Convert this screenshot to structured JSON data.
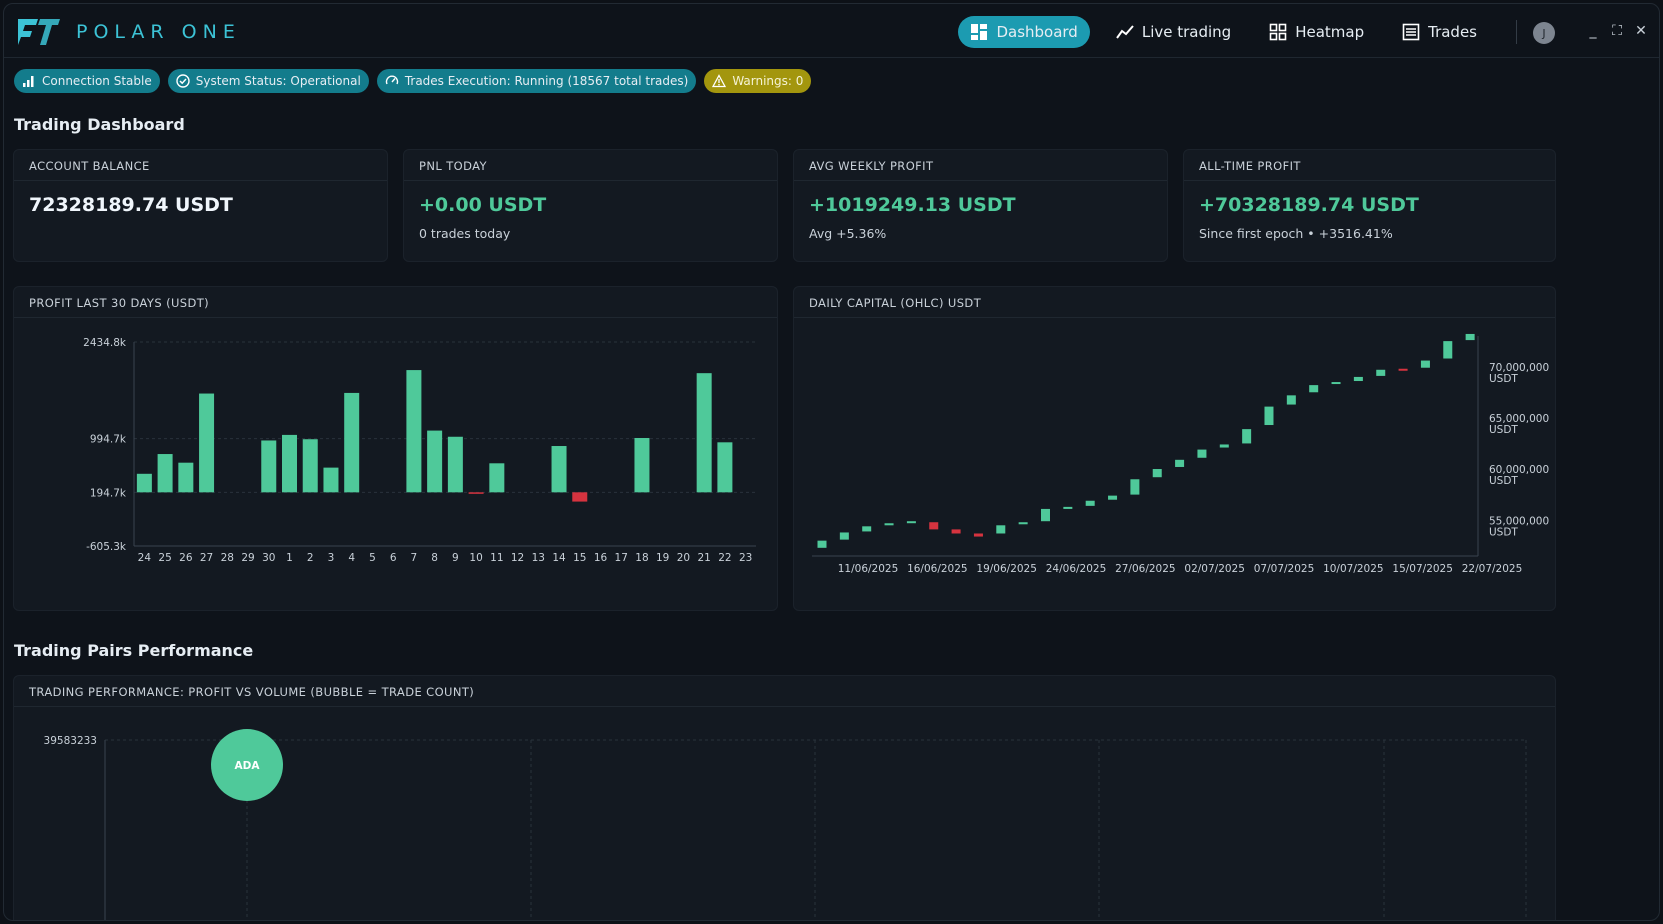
{
  "app": {
    "brand": "POLAR ONE"
  },
  "nav": {
    "items": [
      {
        "label": "Dashboard",
        "icon": "dashboard-icon",
        "active": true
      },
      {
        "label": "Live trading",
        "icon": "line-chart-icon",
        "active": false
      },
      {
        "label": "Heatmap",
        "icon": "grid-icon",
        "active": false
      },
      {
        "label": "Trades",
        "icon": "list-icon",
        "active": false
      }
    ],
    "avatar_initial": "J"
  },
  "status": {
    "connection": "Connection Stable",
    "system": "System Status: Operational",
    "execution": "Trades Execution: Running (18567 total trades)",
    "warnings": "Warnings: 0"
  },
  "dashboard": {
    "title": "Trading Dashboard",
    "cards": [
      {
        "label": "ACCOUNT BALANCE",
        "value": "72328189.74 USDT",
        "sub": ""
      },
      {
        "label": "PNL TODAY",
        "value": "+0.00 USDT",
        "sub": "0 trades today"
      },
      {
        "label": "AVG WEEKLY PROFIT",
        "value": "+1019249.13 USDT",
        "sub": "Avg +5.36%"
      },
      {
        "label": "ALL-TIME PROFIT",
        "value": "+70328189.74 USDT",
        "sub": "Since first epoch • +3516.41%"
      }
    ]
  },
  "profit_chart": {
    "title": "PROFIT LAST 30 DAYS (USDT)",
    "y_ticks": [
      "2434.8k",
      "994.7k",
      "194.7k",
      "-605.3k"
    ],
    "chart_data": {
      "type": "bar",
      "categories": [
        "24",
        "25",
        "26",
        "27",
        "28",
        "29",
        "30",
        "1",
        "2",
        "3",
        "4",
        "5",
        "6",
        "7",
        "8",
        "9",
        "10",
        "11",
        "12",
        "13",
        "14",
        "15",
        "16",
        "17",
        "18",
        "19",
        "20",
        "21",
        "22",
        "23"
      ],
      "values": [
        300,
        620,
        480,
        1600,
        0,
        0,
        840,
        930,
        860,
        400,
        1610,
        0,
        0,
        1980,
        1000,
        900,
        -10,
        470,
        0,
        0,
        750,
        -150,
        0,
        0,
        880,
        0,
        0,
        1930,
        810,
        0
      ],
      "ylim": [
        -605.3,
        2434.8
      ],
      "colors": {
        "positive": "#4fc99a",
        "negative": "#d6333f"
      }
    }
  },
  "capital_chart": {
    "title": "DAILY CAPITAL (OHLC) USDT",
    "x_ticks": [
      "11/06/2025",
      "16/06/2025",
      "19/06/2025",
      "24/06/2025",
      "27/06/2025",
      "02/07/2025",
      "07/07/2025",
      "10/07/2025",
      "15/07/2025",
      "22/07/2025"
    ],
    "y_ticks": [
      {
        "l1": "70,000,000",
        "l2": "USDT",
        "v": 70000000
      },
      {
        "l1": "65,000,000",
        "l2": "USDT",
        "v": 65000000
      },
      {
        "l1": "60,000,000",
        "l2": "USDT",
        "v": 60000000
      },
      {
        "l1": "55,000,000",
        "l2": "USDT",
        "v": 55000000
      }
    ],
    "chart_data": {
      "type": "ohlc",
      "ylim": [
        52000000,
        73500000
      ],
      "candles": [
        [
          52800000,
          53500000
        ],
        [
          53600000,
          54300000
        ],
        [
          54400000,
          54900000
        ],
        [
          55000000,
          55200000
        ],
        [
          55300000,
          55400000
        ],
        [
          55300000,
          54600000
        ],
        [
          54600000,
          54200000
        ],
        [
          54200000,
          53900000
        ],
        [
          54200000,
          55000000
        ],
        [
          55100000,
          55300000
        ],
        [
          55400000,
          56600000
        ],
        [
          56600000,
          56800000
        ],
        [
          56900000,
          57400000
        ],
        [
          57500000,
          57900000
        ],
        [
          58000000,
          59500000
        ],
        [
          59700000,
          60500000
        ],
        [
          60700000,
          61400000
        ],
        [
          61600000,
          62400000
        ],
        [
          62600000,
          62900000
        ],
        [
          63000000,
          64400000
        ],
        [
          64800000,
          66600000
        ],
        [
          66800000,
          67700000
        ],
        [
          68000000,
          68700000
        ],
        [
          68900000,
          69000000
        ],
        [
          69100000,
          69500000
        ],
        [
          69600000,
          70200000
        ],
        [
          70300000,
          70200000
        ],
        [
          70400000,
          71100000
        ],
        [
          71300000,
          73000000
        ],
        [
          73100000,
          73700000
        ]
      ]
    }
  },
  "pairs": {
    "title": "Trading Pairs Performance",
    "chart_title": "TRADING PERFORMANCE: PROFIT VS VOLUME (BUBBLE = TRADE COUNT)",
    "y_top": "39583233",
    "chart_data": {
      "type": "scatter",
      "points": [
        {
          "label": "ADA",
          "y": 39583233
        }
      ]
    }
  }
}
